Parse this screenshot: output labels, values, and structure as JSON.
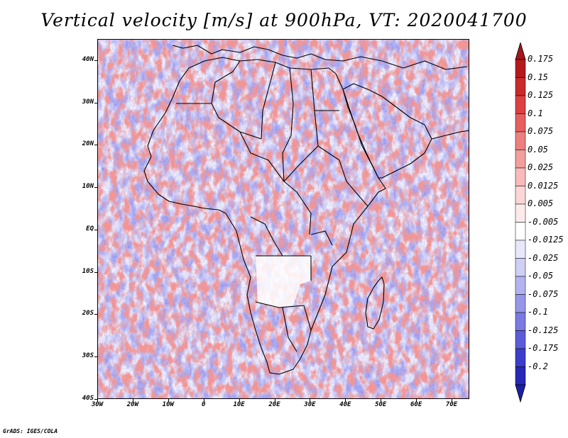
{
  "title": "Vertical velocity [m/s] at 900hPa, VT: 2020041700",
  "credit": "GrADS: IGES/COLA",
  "map": {
    "lat_range": [
      -40,
      45
    ],
    "lon_range": [
      -30,
      75
    ],
    "lat_ticks": [
      {
        "value": 40,
        "label": "40N"
      },
      {
        "value": 30,
        "label": "30N"
      },
      {
        "value": 20,
        "label": "20N"
      },
      {
        "value": 10,
        "label": "10N"
      },
      {
        "value": 0,
        "label": "EQ"
      },
      {
        "value": -10,
        "label": "10S"
      },
      {
        "value": -20,
        "label": "20S"
      },
      {
        "value": -30,
        "label": "30S"
      },
      {
        "value": -40,
        "label": "40S"
      }
    ],
    "lon_ticks": [
      {
        "value": -30,
        "label": "30W"
      },
      {
        "value": -20,
        "label": "20W"
      },
      {
        "value": -10,
        "label": "10W"
      },
      {
        "value": 0,
        "label": "0"
      },
      {
        "value": 10,
        "label": "10E"
      },
      {
        "value": 20,
        "label": "20E"
      },
      {
        "value": 30,
        "label": "30E"
      },
      {
        "value": 40,
        "label": "40E"
      },
      {
        "value": 50,
        "label": "50E"
      },
      {
        "value": 60,
        "label": "60E"
      },
      {
        "value": 70,
        "label": "70E"
      }
    ]
  },
  "colorbar": {
    "levels": [
      {
        "label": "0.175",
        "color": "#b4191e"
      },
      {
        "label": "0.15",
        "color": "#c92a2a"
      },
      {
        "label": "0.125",
        "color": "#dc4040"
      },
      {
        "label": "0.1",
        "color": "#e65e5e"
      },
      {
        "label": "0.075",
        "color": "#ee7f7f"
      },
      {
        "label": "0.05",
        "color": "#f39d9d"
      },
      {
        "label": "0.025",
        "color": "#f8baba"
      },
      {
        "label": "0.0125",
        "color": "#fbd6d6"
      },
      {
        "label": "0.005",
        "color": "#fdeaea"
      },
      {
        "label": "-0.005",
        "color": "#ffffff"
      },
      {
        "label": "-0.0125",
        "color": "#e8e8fb"
      },
      {
        "label": "-0.025",
        "color": "#cfcff6"
      },
      {
        "label": "-0.05",
        "color": "#b3b3f0"
      },
      {
        "label": "-0.075",
        "color": "#9797ea"
      },
      {
        "label": "-0.1",
        "color": "#7a7ae3"
      },
      {
        "label": "-0.125",
        "color": "#5c5cd8"
      },
      {
        "label": "-0.175",
        "color": "#3d3dcc"
      },
      {
        "label": "-0.2",
        "color": "#2727b8"
      }
    ],
    "top_cap_color": "#a5151a",
    "bottom_cap_color": "#1e1ea6",
    "mid_color": "#ffffff"
  }
}
